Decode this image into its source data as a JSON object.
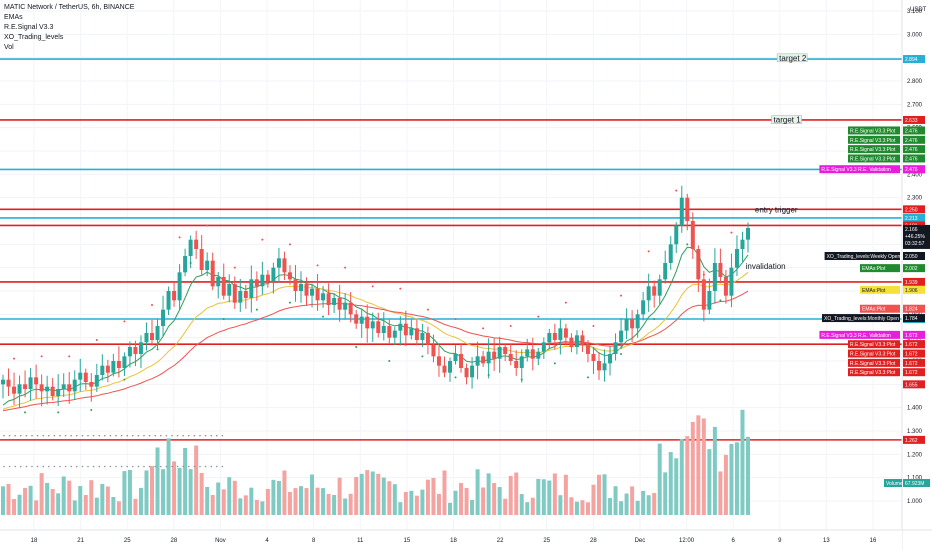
{
  "legend": {
    "title": "MATIC Network / TetherUS, 6h, BINANCE",
    "line2": "EMAs",
    "line3": "R.E.Signal V3.3",
    "line4": "XO_Trading_levels",
    "line5": "Vol"
  },
  "colors": {
    "up": "#26a69a",
    "down": "#ef5350",
    "volUp": "#7fcbc3",
    "volDown": "#f5a3a1",
    "red": "#e02020",
    "cyan": "#27b0d4",
    "ema1": "#2e9e5b",
    "ema2": "#e8c33a",
    "ema3": "#ef5350"
  },
  "chart_data": {
    "type": "candlestick",
    "title": "MATIC Network / TetherUS, 6h, BINANCE",
    "currency": "USDT",
    "x_ticks": [
      "18",
      "21",
      "25",
      "28",
      "Nov",
      "4",
      "8",
      "11",
      "15",
      "18",
      "22",
      "25",
      "28",
      "Dec",
      "12:00",
      "6",
      "9",
      "13",
      "16"
    ],
    "y_ticks": [
      "3.100",
      "3.000",
      "2.900",
      "2.800",
      "2.700",
      "2.600",
      "2.500",
      "2.400",
      "2.300",
      "2.200",
      "2.100",
      "2.000",
      "1.900",
      "1.800",
      "1.700",
      "1.600",
      "1.500",
      "1.400",
      "1.300",
      "1.200",
      "1.100",
      "1.000"
    ],
    "ylim": [
      0.94,
      3.13
    ],
    "horizontal_levels": [
      {
        "value": 2.894,
        "color": "cyan",
        "tag": "2.894"
      },
      {
        "value": 2.633,
        "color": "red",
        "tag": "2.633"
      },
      {
        "value": 2.421,
        "color": "cyan",
        "tag": "2.421"
      },
      {
        "value": 2.25,
        "color": "red",
        "tag": "2.250"
      },
      {
        "value": 2.213,
        "color": "cyan",
        "tag": "2.213"
      },
      {
        "value": 2.181,
        "color": "red",
        "tag": "2.181"
      },
      {
        "value": 1.939,
        "color": "red",
        "tag": "1.939"
      },
      {
        "value": 1.78,
        "color": "cyan",
        "tag": "1.780"
      },
      {
        "value": 1.672,
        "color": "red",
        "tag": "1.672"
      },
      {
        "value": 1.262,
        "color": "red",
        "tag": "1.262"
      }
    ],
    "price_tags": [
      {
        "text": "2.476",
        "bg": "#1f8a2e",
        "y": 2.588,
        "label": "R.E.Signal V3.3:Plot"
      },
      {
        "text": "2.476",
        "bg": "#1f8a2e",
        "y": 2.548,
        "label": "R.E.Signal V3.3:Plot"
      },
      {
        "text": "2.476",
        "bg": "#1f8a2e",
        "y": 2.508,
        "label": "R.E.Signal V3.3:Plot"
      },
      {
        "text": "2.476",
        "bg": "#1f8a2e",
        "y": 2.468,
        "label": "R.E.Signal V3.3:Plot"
      },
      {
        "text": "2.476",
        "bg": "#e91edb",
        "y": 2.422,
        "label": "R.E.Signal V3.3 R.E. Validation"
      },
      {
        "text": "2.050",
        "bg": "#131722",
        "y": 2.05,
        "label": "XO_Trading_levels:Weekly Open"
      },
      {
        "text": "2.002",
        "bg": "#1f8a2e",
        "y": 1.998,
        "label": "EMAs:Plot"
      },
      {
        "text": "1.906",
        "bg": "#f3e23a",
        "y": 1.905,
        "label": "EMAs:Plot"
      },
      {
        "text": "1.824",
        "bg": "#ef5350",
        "y": 1.824,
        "label": "EMAs:Plot"
      },
      {
        "text": "1.784",
        "bg": "#131722",
        "y": 1.784,
        "label": "XO_Trading_levels:Monthly Open"
      },
      {
        "text": "1.672",
        "bg": "#e91edb",
        "y": 1.712,
        "label": "R.E.Signal V3.3 R.E. Validation"
      },
      {
        "text": "1.672",
        "bg": "#e02020",
        "y": 1.672,
        "label": "R.E.Signal V3.3:Plot"
      },
      {
        "text": "1.672",
        "bg": "#e02020",
        "y": 1.632,
        "label": "R.E.Signal V3.3:Plot"
      },
      {
        "text": "1.672",
        "bg": "#e02020",
        "y": 1.592,
        "label": "R.E.Signal V3.3:Plot"
      },
      {
        "text": "1.672",
        "bg": "#e02020",
        "y": 1.552,
        "label": "R.E.Signal V3.3:Plot"
      },
      {
        "text": "1.655",
        "bg": "#e02020",
        "y": 1.5,
        "label": ""
      }
    ],
    "current_price": {
      "value": 2.166,
      "change": "+46.25%",
      "time": "03:32:57"
    },
    "volume_tag": {
      "label": "Volume",
      "value": "67.923M"
    },
    "annotations": [
      {
        "text": "target 2",
        "x_frac": 0.836,
        "y": 2.895,
        "boxed": true
      },
      {
        "text": "target 1",
        "x_frac": 0.83,
        "y": 2.63,
        "boxed": true
      },
      {
        "text": "entry trigger",
        "x_frac": 0.81,
        "y": 2.245,
        "boxed": false
      },
      {
        "text": "invalidation",
        "x_frac": 0.8,
        "y": 2.002,
        "boxed": false
      }
    ],
    "closes": [
      1.52,
      1.49,
      1.46,
      1.5,
      1.48,
      1.53,
      1.5,
      1.47,
      1.49,
      1.45,
      1.48,
      1.5,
      1.47,
      1.52,
      1.55,
      1.51,
      1.49,
      1.54,
      1.58,
      1.55,
      1.6,
      1.57,
      1.62,
      1.66,
      1.63,
      1.68,
      1.72,
      1.69,
      1.75,
      1.82,
      1.9,
      1.86,
      1.98,
      2.05,
      2.12,
      2.08,
      1.99,
      2.03,
      1.92,
      1.96,
      1.88,
      1.93,
      1.85,
      1.9,
      1.87,
      1.95,
      1.92,
      1.97,
      1.94,
      2.0,
      2.04,
      1.98,
      1.95,
      1.9,
      1.93,
      1.88,
      1.91,
      1.86,
      1.89,
      1.84,
      1.87,
      1.82,
      1.85,
      1.8,
      1.76,
      1.79,
      1.74,
      1.77,
      1.72,
      1.75,
      1.7,
      1.73,
      1.76,
      1.71,
      1.74,
      1.69,
      1.72,
      1.67,
      1.62,
      1.58,
      1.55,
      1.6,
      1.63,
      1.57,
      1.53,
      1.58,
      1.62,
      1.59,
      1.64,
      1.61,
      1.66,
      1.63,
      1.6,
      1.57,
      1.62,
      1.65,
      1.61,
      1.64,
      1.68,
      1.72,
      1.69,
      1.74,
      1.7,
      1.66,
      1.71,
      1.67,
      1.63,
      1.6,
      1.56,
      1.59,
      1.63,
      1.68,
      1.73,
      1.78,
      1.74,
      1.8,
      1.86,
      1.92,
      1.88,
      1.95,
      2.02,
      2.1,
      2.18,
      2.3,
      2.2,
      2.08,
      1.95,
      1.82,
      1.9,
      2.02,
      1.96,
      1.88,
      2.0,
      2.08,
      2.12,
      2.17
    ]
  }
}
